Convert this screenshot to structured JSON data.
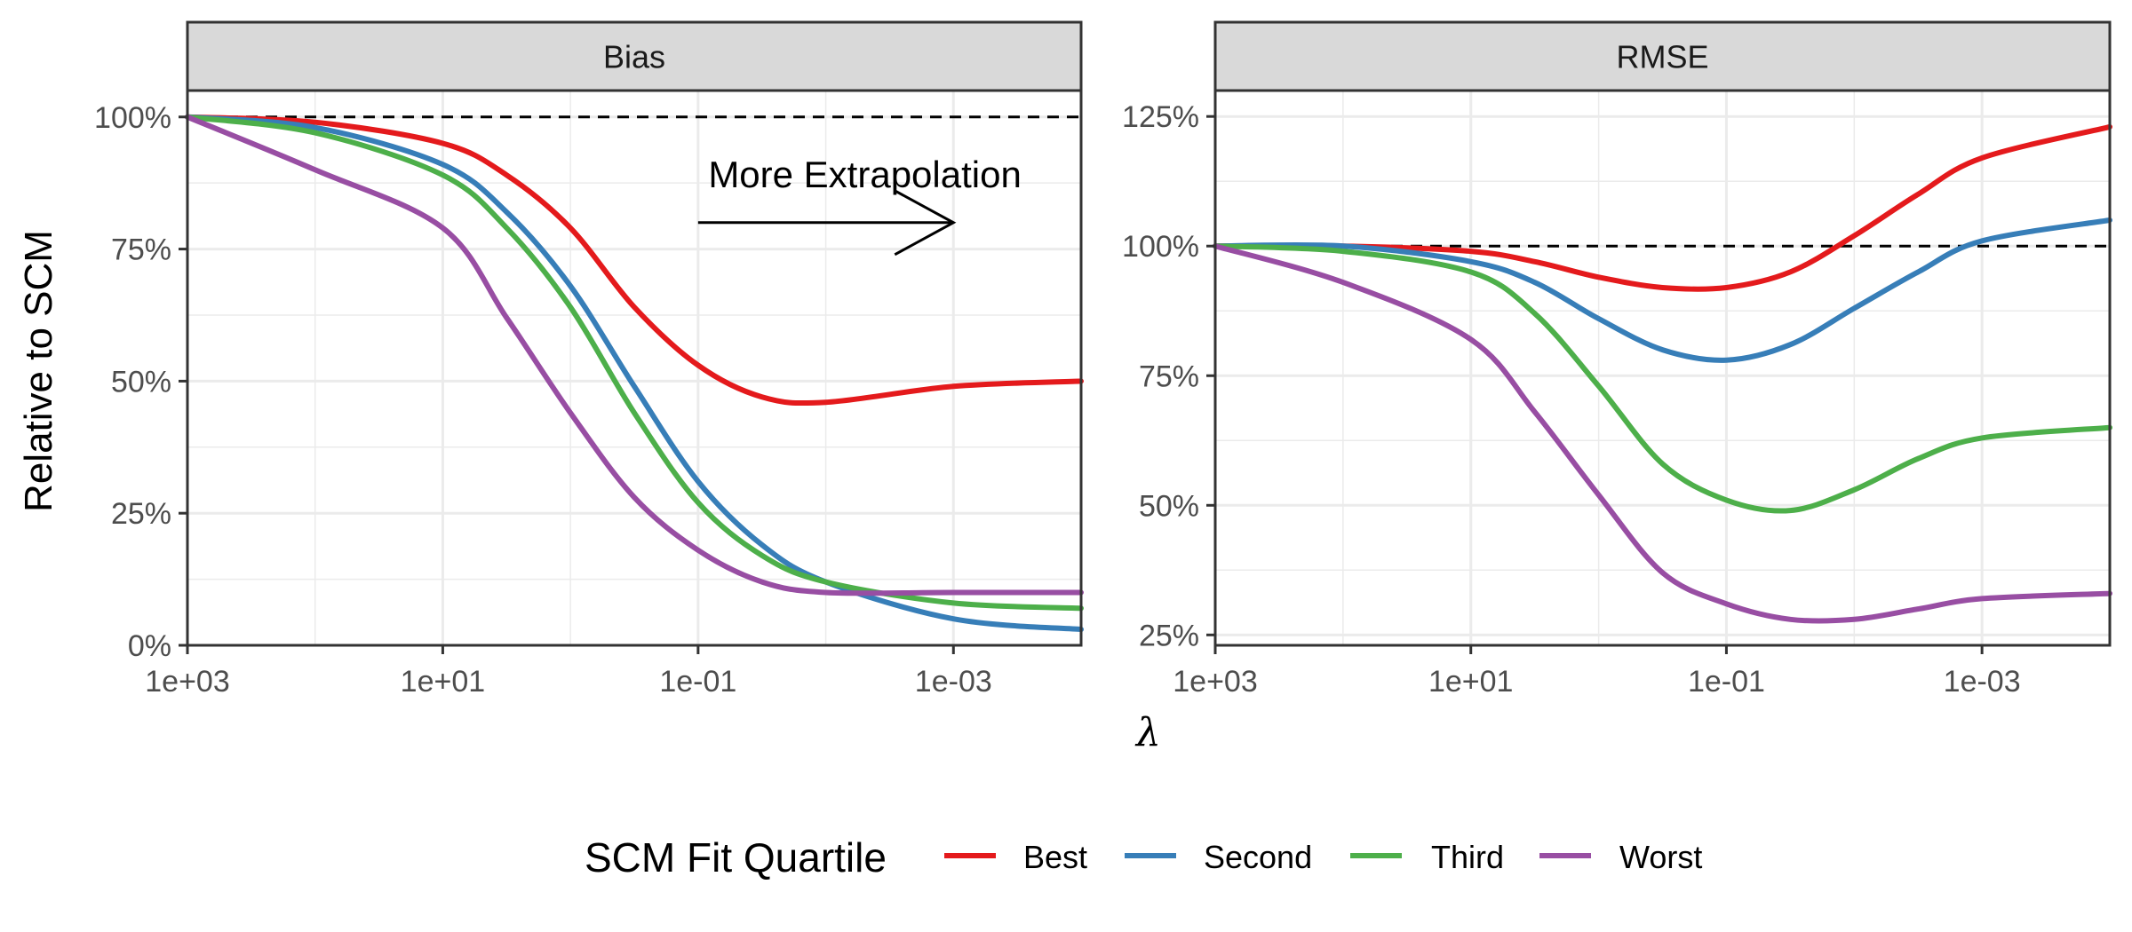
{
  "chart_data": [
    {
      "type": "line",
      "panel": "Bias",
      "title": "Bias",
      "xlabel": "λ",
      "ylabel": "Relative to SCM",
      "x_scale": "log10-reversed",
      "xlim": [
        1000,
        0.0001
      ],
      "ylim": [
        0,
        1.05
      ],
      "x_tick_values": [
        1000,
        10,
        0.1,
        0.001
      ],
      "x_tick_labels": [
        "1e+03",
        "1e+01",
        "1e-01",
        "1e-03"
      ],
      "y_tick_values": [
        0,
        0.25,
        0.5,
        0.75,
        1.0
      ],
      "y_tick_labels": [
        "0%",
        "25%",
        "50%",
        "75%",
        "100%"
      ],
      "reference_line": 1.0,
      "x": [
        1000,
        100,
        10,
        3.16,
        1,
        0.316,
        0.1,
        0.0316,
        0.01,
        0.001,
        0.0001
      ],
      "series": [
        {
          "name": "Best",
          "values": [
            1.0,
            0.99,
            0.95,
            0.89,
            0.79,
            0.64,
            0.53,
            0.47,
            0.46,
            0.49,
            0.5
          ]
        },
        {
          "name": "Second",
          "values": [
            1.0,
            0.98,
            0.91,
            0.82,
            0.68,
            0.49,
            0.31,
            0.19,
            0.12,
            0.05,
            0.03
          ]
        },
        {
          "name": "Third",
          "values": [
            1.0,
            0.97,
            0.89,
            0.79,
            0.64,
            0.44,
            0.27,
            0.17,
            0.12,
            0.08,
            0.07
          ]
        },
        {
          "name": "Worst",
          "values": [
            1.0,
            0.9,
            0.79,
            0.62,
            0.44,
            0.28,
            0.18,
            0.12,
            0.1,
            0.1,
            0.1
          ]
        }
      ],
      "annotations": [
        {
          "text": "More Extrapolation",
          "type": "arrow",
          "from_x": 0.1,
          "to_x": 0.001,
          "y": 0.8
        }
      ]
    },
    {
      "type": "line",
      "panel": "RMSE",
      "title": "RMSE",
      "xlabel": "λ",
      "ylabel": "Relative to SCM",
      "x_scale": "log10-reversed",
      "xlim": [
        1000,
        0.0001
      ],
      "ylim": [
        0.23,
        1.3
      ],
      "x_tick_values": [
        1000,
        10,
        0.1,
        0.001
      ],
      "x_tick_labels": [
        "1e+03",
        "1e+01",
        "1e-01",
        "1e-03"
      ],
      "y_tick_values": [
        0.25,
        0.5,
        0.75,
        1.0,
        1.25
      ],
      "y_tick_labels": [
        "25%",
        "50%",
        "75%",
        "100%",
        "125%"
      ],
      "reference_line": 1.0,
      "x": [
        1000,
        100,
        10,
        3.16,
        1,
        0.316,
        0.1,
        0.0316,
        0.01,
        0.00316,
        0.001,
        0.0001
      ],
      "series": [
        {
          "name": "Best",
          "values": [
            1.0,
            1.0,
            0.99,
            0.97,
            0.94,
            0.92,
            0.92,
            0.95,
            1.02,
            1.1,
            1.17,
            1.23
          ]
        },
        {
          "name": "Second",
          "values": [
            1.0,
            1.0,
            0.97,
            0.93,
            0.86,
            0.8,
            0.78,
            0.81,
            0.88,
            0.95,
            1.01,
            1.05
          ]
        },
        {
          "name": "Third",
          "values": [
            1.0,
            0.99,
            0.95,
            0.87,
            0.73,
            0.58,
            0.51,
            0.49,
            0.53,
            0.59,
            0.63,
            0.65
          ]
        },
        {
          "name": "Worst",
          "values": [
            1.0,
            0.93,
            0.82,
            0.68,
            0.52,
            0.37,
            0.31,
            0.28,
            0.28,
            0.3,
            0.32,
            0.33
          ]
        }
      ]
    }
  ],
  "legend": {
    "title": "SCM Fit Quartile",
    "position": "bottom",
    "items": [
      {
        "label": "Best",
        "color": "#e41a1c"
      },
      {
        "label": "Second",
        "color": "#377eb8"
      },
      {
        "label": "Third",
        "color": "#4daf4a"
      },
      {
        "label": "Worst",
        "color": "#984ea3"
      }
    ]
  },
  "axis_titles": {
    "x": "λ",
    "y": "Relative to SCM"
  },
  "colors": {
    "strip_background": "#d9d9d9",
    "grid": "#ebebeb",
    "panel_border": "#333333",
    "reference_line": "#000000"
  }
}
